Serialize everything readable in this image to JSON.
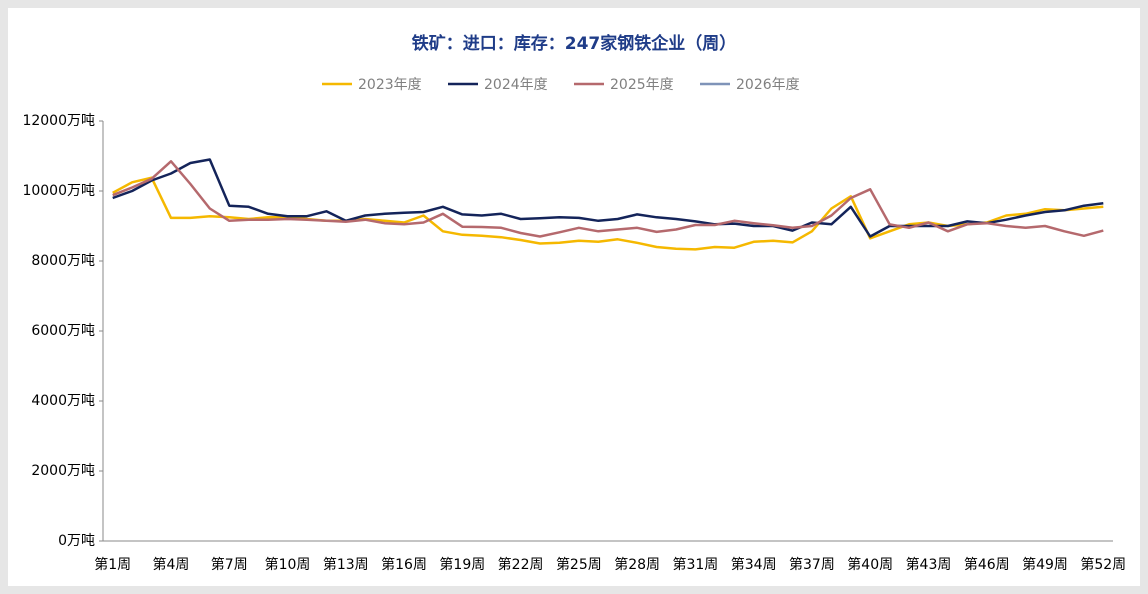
{
  "chart_data": {
    "type": "line",
    "title": "铁矿：进口：库存：247家钢铁企业（周）",
    "categories": [
      "第1周",
      null,
      null,
      "第4周",
      null,
      null,
      "第7周",
      null,
      null,
      "第10周",
      null,
      null,
      "第13周",
      null,
      null,
      "第16周",
      null,
      null,
      "第19周",
      null,
      null,
      "第22周",
      null,
      null,
      "第25周",
      null,
      null,
      "第28周",
      null,
      null,
      "第31周",
      null,
      null,
      "第34周",
      null,
      null,
      "第37周",
      null,
      null,
      "第40周",
      null,
      null,
      "第43周",
      null,
      null,
      "第46周",
      null,
      null,
      "第49周",
      null,
      null,
      "第52周"
    ],
    "series": [
      {
        "name": "2023年度",
        "color": "#f5b800",
        "values": [
          9950,
          10250,
          10380,
          9230,
          9230,
          9280,
          9250,
          9200,
          9250,
          9250,
          9200,
          9150,
          9150,
          9200,
          9150,
          9100,
          9300,
          8850,
          8750,
          8720,
          8680,
          8600,
          8500,
          8520,
          8580,
          8550,
          8620,
          8520,
          8400,
          8350,
          8330,
          8400,
          8380,
          8550,
          8580,
          8530,
          8850,
          9500,
          9850,
          8650,
          8850,
          9050,
          9100,
          9000,
          9050,
          9100,
          9300,
          9350,
          9480,
          9450,
          9500,
          9550
        ]
      },
      {
        "name": "2024年度",
        "color": "#14245a",
        "values": [
          9800,
          10000,
          10300,
          10500,
          10800,
          10900,
          9580,
          9550,
          9350,
          9280,
          9280,
          9420,
          9150,
          9300,
          9350,
          9380,
          9400,
          9550,
          9330,
          9300,
          9350,
          9200,
          9220,
          9250,
          9230,
          9150,
          9200,
          9330,
          9250,
          9200,
          9130,
          9050,
          9070,
          9000,
          9000,
          8870,
          9100,
          9050,
          9550,
          8700,
          9000,
          9000,
          9000,
          9000,
          9130,
          9080,
          9180,
          9300,
          9400,
          9450,
          9580,
          9650
        ]
      },
      {
        "name": "2025年度",
        "color": "#b5696d",
        "values": [
          9880,
          10100,
          10350,
          10850,
          10200,
          9500,
          9150,
          9180,
          9180,
          9200,
          9180,
          9150,
          9120,
          9180,
          9080,
          9050,
          9100,
          9350,
          8980,
          8970,
          8950,
          8800,
          8700,
          8820,
          8950,
          8850,
          8900,
          8950,
          8830,
          8900,
          9030,
          9030,
          9150,
          9080,
          9020,
          8950,
          9000,
          9300,
          9800,
          10050,
          9050,
          8950,
          9100,
          8850,
          9050,
          9080,
          9000,
          8950,
          9000,
          8850,
          8720,
          8870
        ]
      },
      {
        "name": "2026年度",
        "color": "#7f93b8",
        "values": [
          null,
          null,
          null,
          null,
          null,
          null,
          null,
          null,
          null,
          null,
          null,
          null,
          null,
          null,
          null,
          null,
          null,
          null,
          null,
          null,
          null,
          null,
          null,
          null,
          null,
          null,
          null,
          null,
          null,
          null,
          null,
          null,
          null,
          null,
          null,
          null,
          null,
          null,
          null,
          null,
          null,
          null,
          null,
          null,
          null,
          null,
          null,
          null,
          null,
          null,
          null,
          null
        ]
      }
    ],
    "ylim": [
      0,
      12000
    ],
    "yticks": [
      {
        "value": 0,
        "label": "0万吨"
      },
      {
        "value": 2000,
        "label": "2000万吨"
      },
      {
        "value": 4000,
        "label": "4000万吨"
      },
      {
        "value": 6000,
        "label": "6000万吨"
      },
      {
        "value": 8000,
        "label": "8000万吨"
      },
      {
        "value": 10000,
        "label": "10000万吨"
      },
      {
        "value": 12000,
        "label": "12000万吨"
      }
    ]
  }
}
